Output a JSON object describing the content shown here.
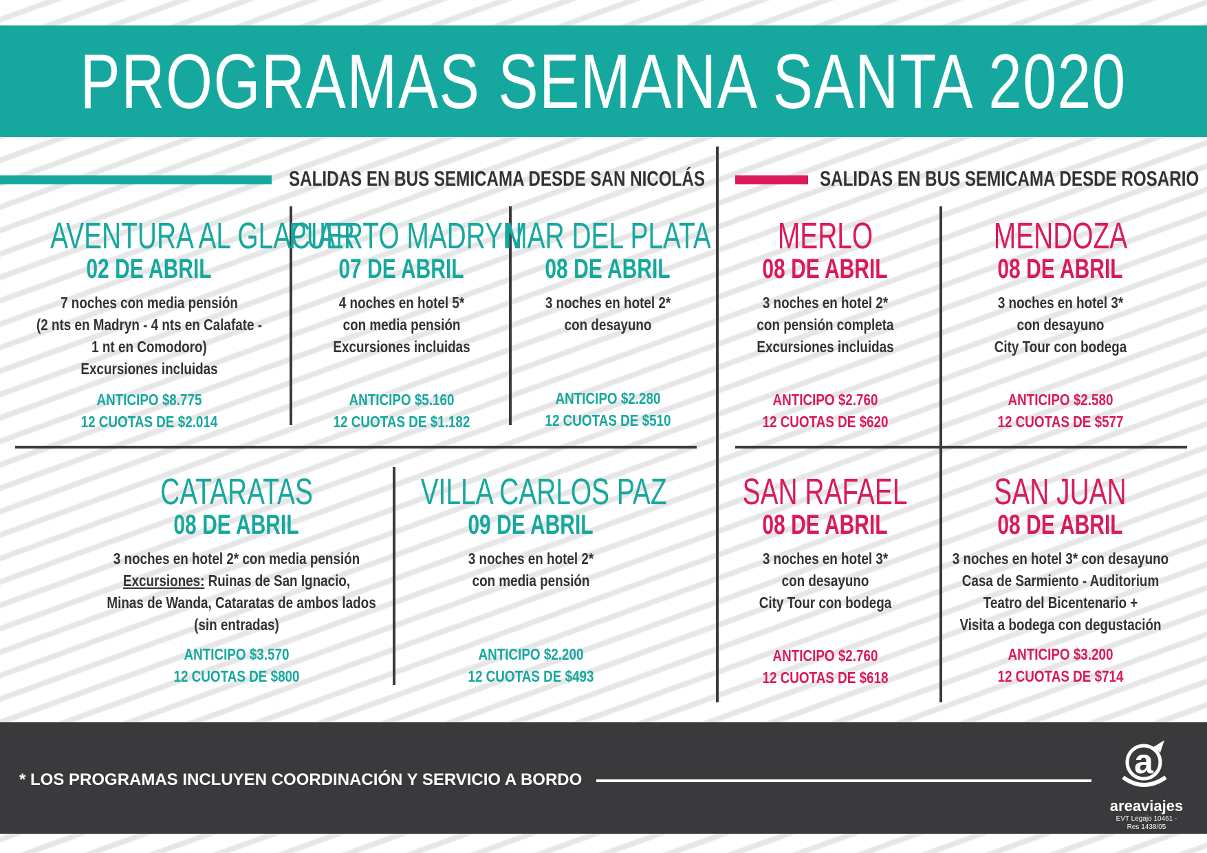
{
  "title": "PROGRAMAS SEMANA SANTA 2020",
  "colors": {
    "teal": "#16a89e",
    "pink": "#d91a5b",
    "dark": "#3a3a3c"
  },
  "sections": {
    "san_nicolas": "SALIDAS EN BUS SEMICAMA DESDE SAN NICOLÁS",
    "rosario": "SALIDAS EN BUS SEMICAMA DESDE ROSARIO"
  },
  "programs": [
    {
      "title": "AVENTURA AL GLACIAR",
      "date": "02 DE ABRIL",
      "lines": [
        "7 noches con media pensión",
        "(2 nts en Madryn - 4 nts en Calafate -",
        "1 nt en Comodoro)",
        "Excursiones incluidas"
      ],
      "anticipo": "ANTICIPO $8.775",
      "cuotas": "12 CUOTAS DE $2.014"
    },
    {
      "title": "PUERTO MADRYN",
      "date": "07 DE ABRIL",
      "lines": [
        "4 noches en hotel 5*",
        "con media pensión",
        "Excursiones incluidas"
      ],
      "anticipo": "ANTICIPO $5.160",
      "cuotas": "12 CUOTAS DE $1.182"
    },
    {
      "title": "MAR DEL PLATA",
      "date": "08 DE ABRIL",
      "lines": [
        "3 noches en hotel 2*",
        "con desayuno"
      ],
      "anticipo": "ANTICIPO $2.280",
      "cuotas": "12 CUOTAS DE $510"
    },
    {
      "title": "CATARATAS",
      "date": "08 DE ABRIL",
      "lines": [
        "3 noches en hotel 2* con media pensión",
        "Ruinas de San Ignacio,",
        "Minas de Wanda, Cataratas de ambos lados",
        "(sin entradas)"
      ],
      "underline_prefix": "Excursiones:",
      "anticipo": "ANTICIPO $3.570",
      "cuotas": "12 CUOTAS DE $800"
    },
    {
      "title": "VILLA CARLOS PAZ",
      "date": "09 DE ABRIL",
      "lines": [
        "3 noches en hotel 2*",
        "con media pensión"
      ],
      "anticipo": "ANTICIPO $2.200",
      "cuotas": "12 CUOTAS DE $493"
    },
    {
      "title": "MERLO",
      "date": "08 DE ABRIL",
      "lines": [
        "3 noches  en hotel 2*",
        "con pensión completa",
        "Excursiones incluidas"
      ],
      "anticipo": "ANTICIPO $2.760",
      "cuotas": "12 CUOTAS DE $620"
    },
    {
      "title": "MENDOZA",
      "date": "08 DE ABRIL",
      "lines": [
        "3 noches  en hotel 3*",
        "con desayuno",
        "City Tour con bodega"
      ],
      "anticipo": "ANTICIPO $2.580",
      "cuotas": "12 CUOTAS DE $577"
    },
    {
      "title": "SAN RAFAEL",
      "date": "08 DE ABRIL",
      "lines": [
        "3 noches  en hotel 3*",
        "con desayuno",
        "City Tour con bodega"
      ],
      "anticipo": "ANTICIPO $2.760",
      "cuotas": "12 CUOTAS DE $618"
    },
    {
      "title": "SAN JUAN",
      "date": "08 DE ABRIL",
      "lines": [
        "3 noches  en hotel 3* con desayuno",
        "Casa de Sarmiento - Auditorium",
        "Teatro del Bicentenario +",
        "Visita a bodega con degustación"
      ],
      "anticipo": "ANTICIPO $3.200",
      "cuotas": "12 CUOTAS DE $714"
    }
  ],
  "footer": {
    "note": "* LOS PROGRAMAS INCLUYEN COORDINACIÓN Y SERVICIO A BORDO",
    "brand": "areaviajes",
    "legal1": "EVT Legajo 10461 -",
    "legal2": "Res 1438/05"
  }
}
